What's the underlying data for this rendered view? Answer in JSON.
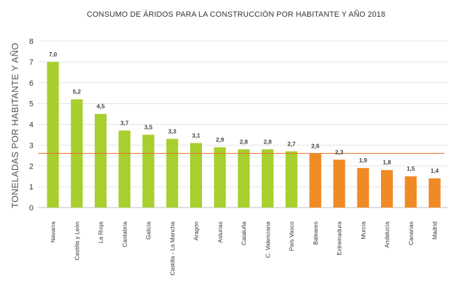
{
  "chart_data": {
    "type": "bar",
    "title": "CONSUMO DE ÁRIDOS PARA LA CONSTRUCCIÓN POR HABITANTE Y AÑO 2018",
    "xlabel": "",
    "ylabel": "TONELADAS POR HABITANTE Y AÑO",
    "ylim": [
      0,
      8
    ],
    "yticks": [
      "0",
      "1",
      "2",
      "3",
      "4",
      "5",
      "6",
      "7",
      "8"
    ],
    "grid": true,
    "categories": [
      "Navarra",
      "Castilla y León",
      "La Rioja",
      "Cantabria",
      "Galicia",
      "Castilla - La Mancha",
      "Aragón",
      "Asturias",
      "Cataluña",
      "C. Valenciana",
      "País Vasco",
      "Baleares",
      "Extremadura",
      "Murcia",
      "Andalucía",
      "Canarias",
      "Madrid"
    ],
    "values": [
      7.0,
      5.2,
      4.5,
      3.7,
      3.5,
      3.3,
      3.1,
      2.9,
      2.8,
      2.8,
      2.7,
      2.6,
      2.3,
      1.9,
      1.8,
      1.5,
      1.4
    ],
    "value_labels": [
      "7,0",
      "5,2",
      "4,5",
      "3,7",
      "3,5",
      "3,3",
      "3,1",
      "2,9",
      "2,8",
      "2,8",
      "2,7",
      "2,6",
      "2,3",
      "1,9",
      "1,8",
      "1,5",
      "1,4"
    ],
    "bar_groups": [
      "above",
      "above",
      "above",
      "above",
      "above",
      "above",
      "above",
      "above",
      "above",
      "above",
      "above",
      "below",
      "below",
      "below",
      "below",
      "below",
      "below"
    ],
    "reference_line": {
      "value": 2.6
    },
    "colors": {
      "above": "#a8cf2e",
      "below": "#f08a24",
      "reference": "#e8762c"
    }
  }
}
